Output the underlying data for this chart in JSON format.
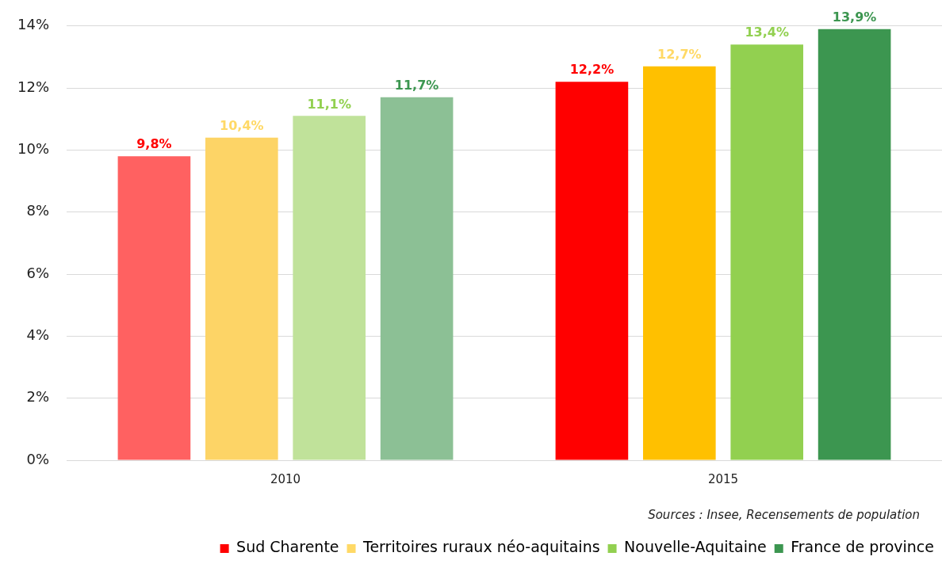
{
  "chart_data": {
    "type": "bar",
    "categories": [
      "2010",
      "2015"
    ],
    "series": [
      {
        "name": "Sud Charente",
        "color": "#ff0000",
        "colors": [
          "#ff6161",
          "#ff0000"
        ],
        "values": [
          9.8,
          12.2
        ],
        "value_labels": [
          "9,8%",
          "12,2%"
        ]
      },
      {
        "name": "Territoires ruraux néo-aquitains",
        "color": "#ffd966",
        "colors": [
          "#fdd466",
          "#ffc000"
        ],
        "values": [
          10.4,
          12.7
        ],
        "value_labels": [
          "10,4%",
          "12,7%"
        ]
      },
      {
        "name": "Nouvelle-Aquitaine",
        "color": "#92d050",
        "colors": [
          "#c0e29a",
          "#92d050"
        ],
        "values": [
          11.1,
          13.4
        ],
        "value_labels": [
          "11,1%",
          "13,4%"
        ]
      },
      {
        "name": "France de province",
        "color": "#3c9650",
        "colors": [
          "#8cc095",
          "#3c9650"
        ],
        "values": [
          11.7,
          13.9
        ],
        "value_labels": [
          "11,7%",
          "13,9%"
        ]
      }
    ],
    "ylim": [
      0,
      14
    ],
    "yticks": [
      {
        "value": 0,
        "label": "0%"
      },
      {
        "value": 2,
        "label": "2%"
      },
      {
        "value": 4,
        "label": "4%"
      },
      {
        "value": 6,
        "label": "6%"
      },
      {
        "value": 8,
        "label": "8%"
      },
      {
        "value": 10,
        "label": "10%"
      },
      {
        "value": 12,
        "label": "12%"
      },
      {
        "value": 14,
        "label": "14%"
      }
    ],
    "grid": "y",
    "legend": "bottom",
    "annotations": [
      "Sources : Insee, Recensements de population"
    ]
  }
}
